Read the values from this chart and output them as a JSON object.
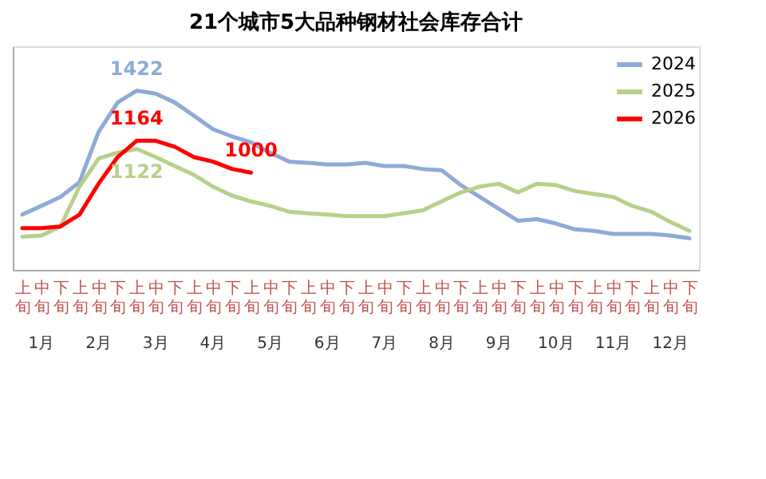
{
  "chart_data": {
    "type": "line",
    "title": "21个城市5大品种钢材社会库存合计",
    "categories": [
      "上旬",
      "中旬",
      "下旬",
      "上旬",
      "中旬",
      "下旬",
      "上旬",
      "中旬",
      "下旬",
      "上旬",
      "中旬",
      "下旬",
      "上旬",
      "中旬",
      "下旬",
      "上旬",
      "中旬",
      "下旬",
      "上旬",
      "中旬",
      "下旬",
      "上旬",
      "中旬",
      "下旬",
      "上旬",
      "中旬",
      "下旬",
      "上旬",
      "中旬",
      "下旬",
      "上旬",
      "中旬",
      "下旬",
      "上旬",
      "中旬",
      "下旬"
    ],
    "annotations": [
      "1月",
      "2月",
      "3月",
      "4月",
      "5月",
      "6月",
      "7月",
      "8月",
      "9月",
      "10月",
      "11月",
      "12月"
    ],
    "series": [
      {
        "name": "2024",
        "color": "#8eaad8",
        "values": [
          784,
          829,
          875,
          951,
          1209,
          1361,
          1422,
          1407,
          1361,
          1293,
          1224,
          1186,
          1156,
          1103,
          1057,
          1050,
          1042,
          1042,
          1050,
          1034,
          1034,
          1019,
          1012,
          936,
          875,
          814,
          753,
          761,
          738,
          708,
          700,
          685,
          685,
          685,
          677,
          662
        ],
        "value_labels": [
          null,
          null,
          null,
          null,
          null,
          null,
          "1422",
          null,
          null,
          null,
          null,
          null,
          null,
          null,
          null,
          null,
          null,
          null,
          null,
          null,
          null,
          null,
          null,
          null,
          null,
          null,
          null,
          null,
          null,
          null,
          null,
          null,
          null,
          null,
          null,
          null
        ]
      },
      {
        "name": "2025",
        "color": "#b8d08a",
        "values": [
          670,
          677,
          723,
          928,
          1072,
          1103,
          1122,
          1080,
          1034,
          989,
          928,
          882,
          852,
          829,
          799,
          791,
          784,
          776,
          776,
          776,
          791,
          806,
          852,
          898,
          928,
          943,
          898,
          943,
          936,
          905,
          890,
          875,
          829,
          799,
          746,
          700
        ],
        "value_labels": [
          null,
          null,
          null,
          null,
          null,
          null,
          "1122",
          null,
          null,
          null,
          null,
          null,
          null,
          null,
          null,
          null,
          null,
          null,
          null,
          null,
          null,
          null,
          null,
          null,
          null,
          null,
          null,
          null,
          null,
          null,
          null,
          null,
          null,
          null,
          null,
          null
        ]
      },
      {
        "name": "2026",
        "color": "#ff0000",
        "values": [
          715,
          715,
          723,
          784,
          943,
          1080,
          1164,
          1164,
          1133,
          1080,
          1057,
          1019,
          1000,
          null,
          null,
          null,
          null,
          null,
          null,
          null,
          null,
          null,
          null,
          null,
          null,
          null,
          null,
          null,
          null,
          null,
          null,
          null,
          null,
          null,
          null,
          null
        ],
        "value_labels": [
          null,
          null,
          null,
          null,
          null,
          null,
          "1164",
          null,
          null,
          null,
          null,
          null,
          "1000",
          null,
          null,
          null,
          null,
          null,
          null,
          null,
          null,
          null,
          null,
          null,
          null,
          null,
          null,
          null,
          null,
          null,
          null,
          null,
          null,
          null,
          null,
          null
        ]
      }
    ],
    "ylim": [
      500,
      1650
    ],
    "tick_labels": "x",
    "legend": "top right"
  }
}
